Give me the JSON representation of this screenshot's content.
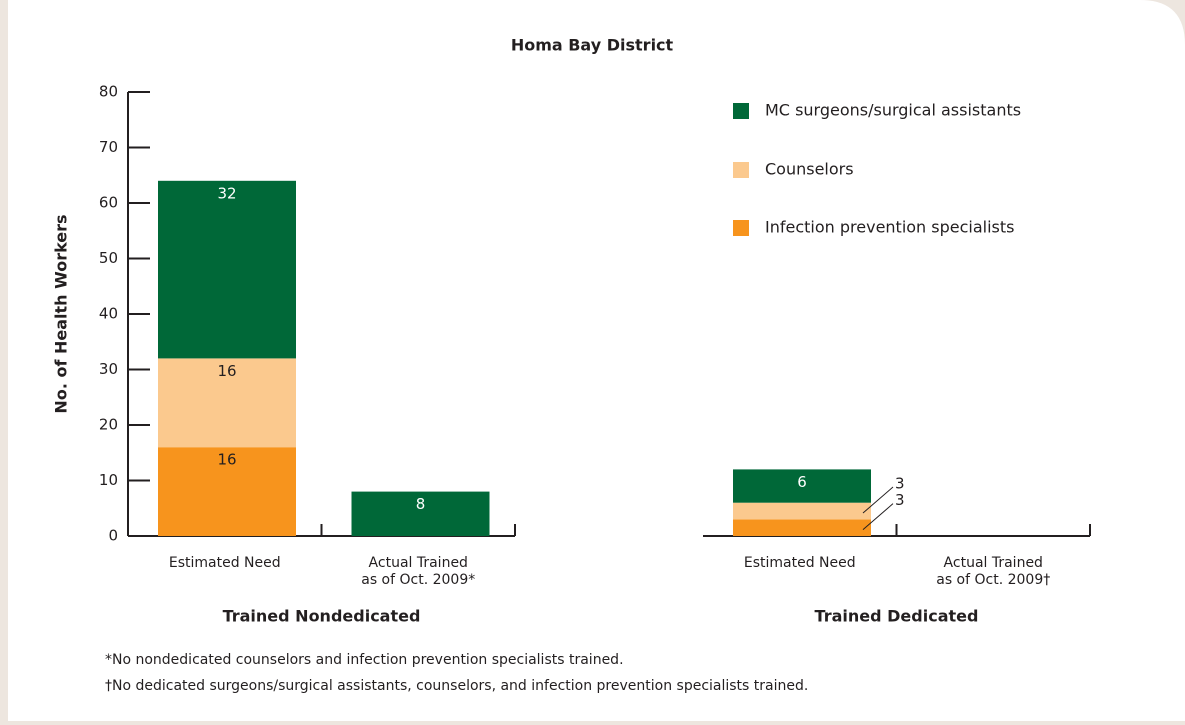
{
  "chart_data": {
    "type": "stacked_bar",
    "title": "Homa Bay District",
    "ylabel": "No. of Health Workers",
    "categories": [
      "Estimated Need",
      "Actual Trained\nas of Oct. 2009*",
      "Estimated Need",
      "Actual Trained\nas of Oct. 2009†"
    ],
    "group_labels": [
      "Trained Nondedicated",
      "Trained Dedicated"
    ],
    "series": [
      {
        "name": "Infection prevention specialists",
        "color": "#f7941d",
        "values": [
          16,
          0,
          3,
          0
        ]
      },
      {
        "name": "Counselors",
        "color": "#fbc98e",
        "values": [
          16,
          0,
          3,
          0
        ]
      },
      {
        "name": "MC surgeons/surgical assistants",
        "color": "#006838",
        "values": [
          32,
          8,
          6,
          0
        ]
      }
    ],
    "ylim": [
      0,
      80
    ],
    "yticks": [
      0,
      10,
      20,
      30,
      40,
      50,
      60,
      70,
      80
    ],
    "legend": "top-right",
    "notes": [
      "*No nondedicated counselors and infection prevention specialists trained.",
      "†No dedicated surgeons/surgical assistants, counselors, and infection prevention specialists trained."
    ]
  }
}
